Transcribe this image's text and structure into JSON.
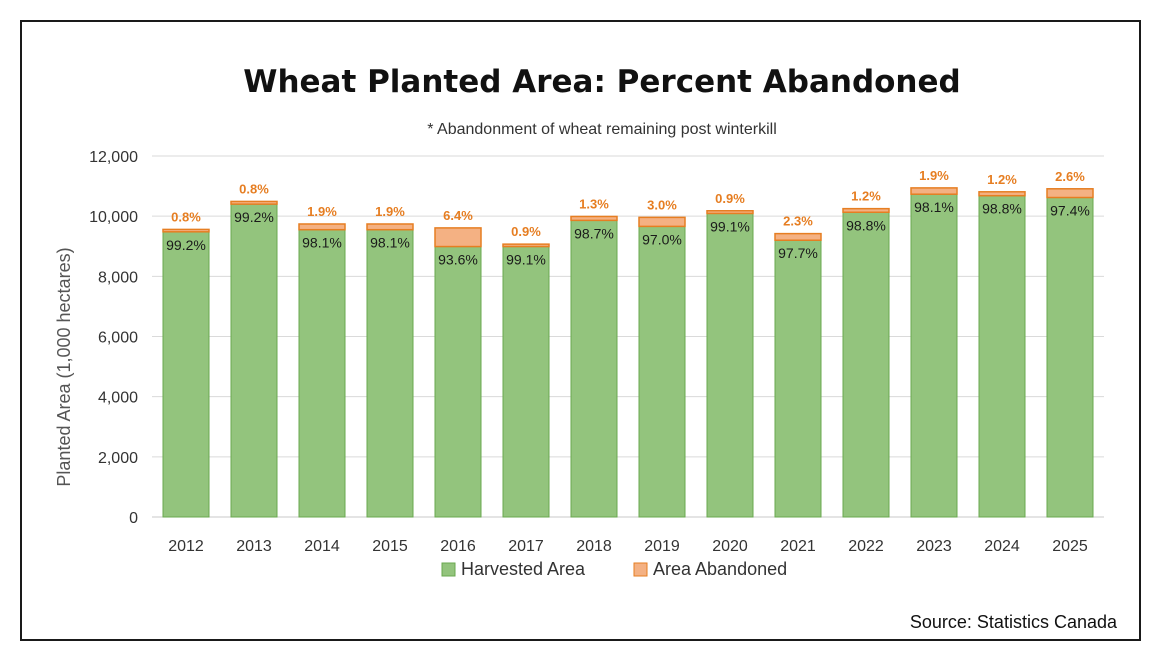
{
  "chart_data": {
    "type": "bar",
    "stacked": true,
    "title": "Wheat Planted Area: Percent Abandoned",
    "subtitle": "* Abandonment of wheat remaining post winterkill",
    "xlabel": "",
    "ylabel": "Planted Area (1,000 hectares)",
    "ylim": [
      0,
      12000
    ],
    "yticks": [
      0,
      2000,
      4000,
      6000,
      8000,
      10000,
      12000
    ],
    "ytick_labels": [
      "0",
      "2,000",
      "4,000",
      "6,000",
      "8,000",
      "10,000",
      "12,000"
    ],
    "grid": true,
    "legend_position": "bottom",
    "categories": [
      "2012",
      "2013",
      "2014",
      "2015",
      "2016",
      "2017",
      "2018",
      "2019",
      "2020",
      "2021",
      "2022",
      "2023",
      "2024",
      "2025"
    ],
    "series": [
      {
        "name": "Harvested Area",
        "color": "#93c47d",
        "edge_color": "#6aa84f",
        "values": [
          9480,
          10400,
          9550,
          9550,
          8990,
          8990,
          9860,
          9660,
          10090,
          9200,
          10130,
          10730,
          10680,
          10620
        ],
        "labels": [
          "99.2%",
          "99.2%",
          "98.1%",
          "98.1%",
          "93.6%",
          "99.1%",
          "98.7%",
          "97.0%",
          "99.1%",
          "97.7%",
          "98.8%",
          "98.1%",
          "98.8%",
          "97.4%"
        ],
        "label_color": "#1a1a1a"
      },
      {
        "name": "Area Abandoned",
        "color": "#f4b183",
        "edge_color": "#e67e22",
        "values": [
          80,
          90,
          190,
          190,
          620,
          80,
          130,
          300,
          90,
          220,
          120,
          210,
          130,
          290
        ],
        "labels": [
          "0.8%",
          "0.8%",
          "1.9%",
          "1.9%",
          "6.4%",
          "0.9%",
          "1.3%",
          "3.0%",
          "0.9%",
          "2.3%",
          "1.2%",
          "1.9%",
          "1.2%",
          "2.6%"
        ],
        "label_color": "#e67e22"
      }
    ],
    "source": "Source: Statistics Canada"
  }
}
